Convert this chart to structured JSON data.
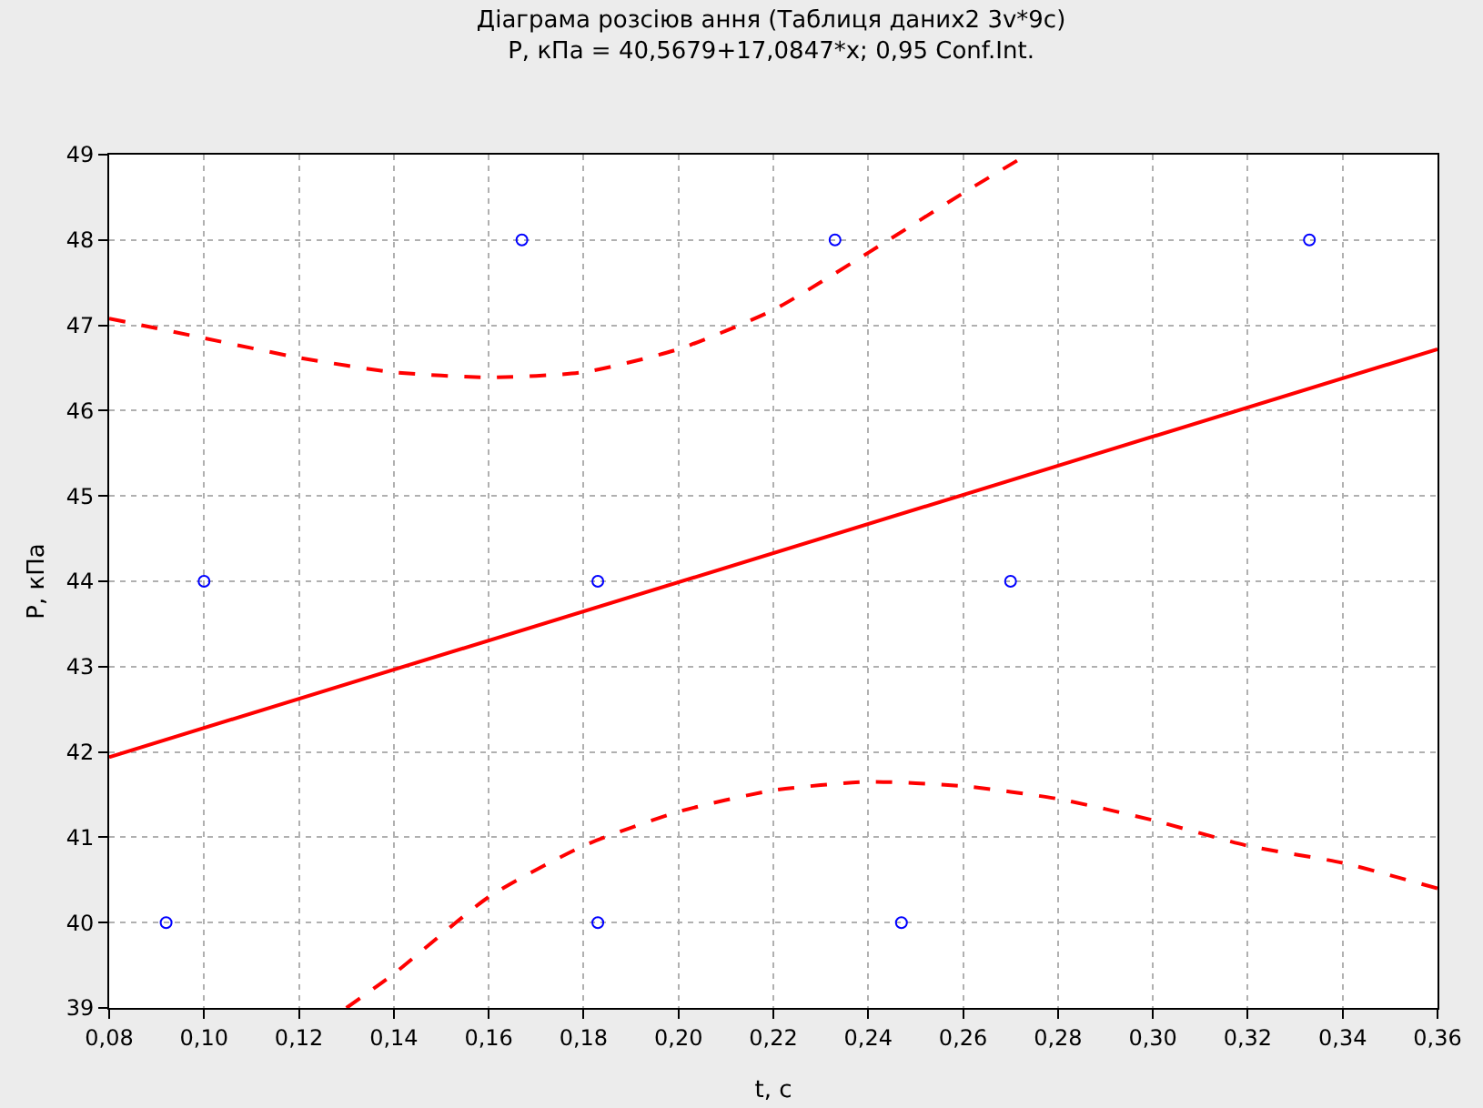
{
  "chart_data": {
    "type": "scatter",
    "title": "Діаграма розсіюв ання (Таблиця даних2 3v*9c)",
    "subtitle": "P, кПа = 40,5679+17,0847*x; 0,95 Conf.Int.",
    "xlabel": "t, c",
    "ylabel": "P, кПа",
    "xlim": [
      0.08,
      0.36
    ],
    "ylim": [
      39,
      49
    ],
    "xticks": [
      {
        "value": 0.08,
        "label": "0,08"
      },
      {
        "value": 0.1,
        "label": "0,10"
      },
      {
        "value": 0.12,
        "label": "0,12"
      },
      {
        "value": 0.14,
        "label": "0,14"
      },
      {
        "value": 0.16,
        "label": "0,16"
      },
      {
        "value": 0.18,
        "label": "0,18"
      },
      {
        "value": 0.2,
        "label": "0,20"
      },
      {
        "value": 0.22,
        "label": "0,22"
      },
      {
        "value": 0.24,
        "label": "0,24"
      },
      {
        "value": 0.26,
        "label": "0,26"
      },
      {
        "value": 0.28,
        "label": "0,28"
      },
      {
        "value": 0.3,
        "label": "0,30"
      },
      {
        "value": 0.32,
        "label": "0,32"
      },
      {
        "value": 0.34,
        "label": "0,34"
      },
      {
        "value": 0.36,
        "label": "0,36"
      }
    ],
    "yticks": [
      39,
      40,
      41,
      42,
      43,
      44,
      45,
      46,
      47,
      48,
      49
    ],
    "grid": true,
    "series": [
      {
        "type": "scatter",
        "color": "#0000ff",
        "marker": "circle",
        "x": [
          0.092,
          0.1,
          0.167,
          0.183,
          0.183,
          0.233,
          0.247,
          0.27,
          0.333
        ],
        "values": [
          40,
          44,
          48,
          44,
          40,
          48,
          40,
          44,
          48
        ]
      },
      {
        "type": "line",
        "color": "#ff0000",
        "marker": "none",
        "line_style": "solid",
        "x": [
          0.08,
          0.36
        ],
        "values": [
          41.94,
          46.72
        ]
      },
      {
        "type": "line",
        "color": "#ff0000",
        "marker": "none",
        "line_style": "dashed",
        "x": [
          0.08,
          0.1,
          0.12,
          0.14,
          0.16,
          0.18,
          0.2,
          0.22,
          0.24,
          0.26,
          0.272
        ],
        "values": [
          47.08,
          46.85,
          46.62,
          46.45,
          46.39,
          46.45,
          46.72,
          47.18,
          47.85,
          48.55,
          48.95
        ]
      },
      {
        "type": "line",
        "color": "#ff0000",
        "marker": "none",
        "line_style": "dashed",
        "x": [
          0.13,
          0.14,
          0.16,
          0.18,
          0.2,
          0.22,
          0.24,
          0.26,
          0.28,
          0.3,
          0.32,
          0.34,
          0.36
        ],
        "values": [
          39.0,
          39.4,
          40.3,
          40.9,
          41.3,
          41.55,
          41.65,
          41.6,
          41.45,
          41.2,
          40.9,
          40.7,
          40.4
        ]
      }
    ]
  }
}
